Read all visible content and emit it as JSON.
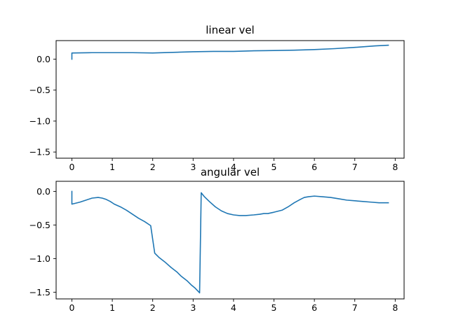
{
  "chart_data": [
    {
      "type": "line",
      "title": "linear vel",
      "xlabel": "",
      "ylabel": "",
      "xlim": [
        -0.39,
        8.22
      ],
      "ylim": [
        -1.6,
        0.3
      ],
      "xticks": [
        0,
        1,
        2,
        3,
        4,
        5,
        6,
        7,
        8
      ],
      "yticks": [
        0.0,
        -0.5,
        -1.0,
        -1.5
      ],
      "ytick_labels": [
        "0.0",
        "−0.5",
        "−1.0",
        "−1.5"
      ],
      "grid": false,
      "color": "#1f77b4",
      "series": [
        {
          "x": [
            0,
            0,
            0.02,
            0.5,
            1.0,
            1.5,
            2.0,
            2.5,
            3.0,
            3.5,
            4.0,
            4.5,
            5.0,
            5.5,
            6.0,
            6.5,
            7.0,
            7.5,
            7.83
          ],
          "y": [
            0.0,
            0.1,
            0.1,
            0.105,
            0.105,
            0.105,
            0.1,
            0.11,
            0.12,
            0.125,
            0.125,
            0.135,
            0.14,
            0.145,
            0.155,
            0.17,
            0.19,
            0.215,
            0.225
          ]
        }
      ]
    },
    {
      "type": "line",
      "title": "angular vel",
      "xlabel": "",
      "ylabel": "",
      "xlim": [
        -0.39,
        8.22
      ],
      "ylim": [
        -1.6,
        0.15
      ],
      "xticks": [
        0,
        1,
        2,
        3,
        4,
        5,
        6,
        7,
        8
      ],
      "yticks": [
        0.0,
        -0.5,
        -1.0,
        -1.5
      ],
      "ytick_labels": [
        "0.0",
        "−0.5",
        "−1.0",
        "−1.5"
      ],
      "grid": false,
      "color": "#1f77b4",
      "series": [
        {
          "x": [
            0,
            0,
            0.2,
            0.35,
            0.5,
            0.65,
            0.75,
            0.85,
            0.95,
            1.05,
            1.2,
            1.35,
            1.5,
            1.65,
            1.8,
            1.95,
            2.05,
            2.15,
            2.3,
            2.45,
            2.6,
            2.7,
            2.85,
            2.95,
            3.05,
            3.16,
            3.2,
            3.28,
            3.4,
            3.55,
            3.7,
            3.85,
            4.0,
            4.15,
            4.3,
            4.5,
            4.65,
            4.75,
            4.85,
            5.0,
            5.2,
            5.35,
            5.5,
            5.65,
            5.75,
            5.85,
            6.0,
            6.2,
            6.4,
            6.6,
            6.8,
            7.0,
            7.2,
            7.4,
            7.6,
            7.83
          ],
          "y": [
            0.0,
            -0.19,
            -0.16,
            -0.13,
            -0.1,
            -0.09,
            -0.1,
            -0.12,
            -0.15,
            -0.19,
            -0.23,
            -0.28,
            -0.34,
            -0.4,
            -0.45,
            -0.51,
            -0.92,
            -0.98,
            -1.05,
            -1.13,
            -1.2,
            -1.26,
            -1.33,
            -1.39,
            -1.44,
            -1.51,
            -0.02,
            -0.08,
            -0.15,
            -0.23,
            -0.29,
            -0.33,
            -0.35,
            -0.36,
            -0.36,
            -0.35,
            -0.34,
            -0.33,
            -0.33,
            -0.31,
            -0.28,
            -0.23,
            -0.17,
            -0.12,
            -0.09,
            -0.08,
            -0.07,
            -0.08,
            -0.09,
            -0.11,
            -0.13,
            -0.14,
            -0.15,
            -0.16,
            -0.17,
            -0.17
          ]
        }
      ]
    }
  ]
}
